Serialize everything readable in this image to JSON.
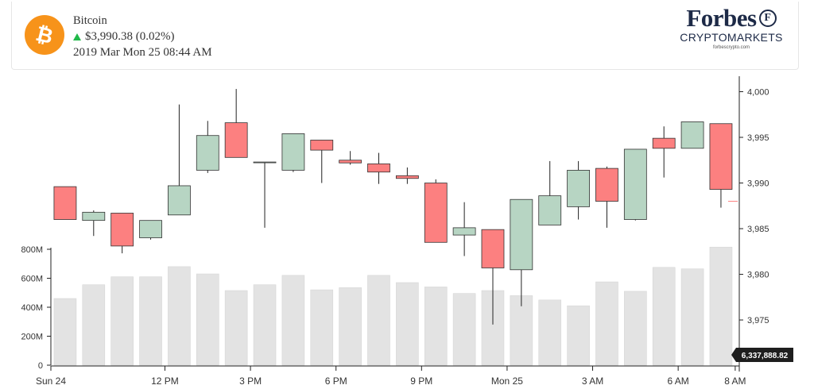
{
  "header": {
    "coin_name": "Bitcoin",
    "coin_symbol": "₿",
    "price_change": "$3,990.38 (0.02%)",
    "timestamp": "2019 Mar Mon 25 08:44 AM",
    "change_direction": "up"
  },
  "brand": {
    "name": "Forbes",
    "badge": "F",
    "subtitle": "CRYPTOMARKETS",
    "url": "forbescrypto.com"
  },
  "colors": {
    "up": "#b7d5c3",
    "down": "#fc8080",
    "volume": "#e3e3e3",
    "orange": "#f7931a",
    "arrow": "#21b94a"
  },
  "chart_data": {
    "type": "candlestick",
    "x_tick_labels": [
      "Sun 24",
      "12 PM",
      "3 PM",
      "6 PM",
      "9 PM",
      "Mon 25",
      "3 AM",
      "6 AM",
      "8 AM"
    ],
    "price_ticks": [
      "4,000",
      "3,995",
      "3,990",
      "3,985",
      "3,980",
      "3,975"
    ],
    "volume_ticks": [
      "800M",
      "600M",
      "400M",
      "200M",
      "0"
    ],
    "price_range": [
      3971.7,
      4001.0
    ],
    "volume_range": [
      0,
      900
    ],
    "last_price": 3988.0,
    "volume_label": "6,337,888.82",
    "candles": [
      {
        "open": 3989.6,
        "close": 3986.0,
        "high": 3989.6,
        "low": 3986.0,
        "volume": 460
      },
      {
        "open": 3985.9,
        "close": 3986.8,
        "high": 3987.0,
        "low": 3984.2,
        "volume": 555
      },
      {
        "open": 3986.7,
        "close": 3983.1,
        "high": 3986.7,
        "low": 3982.3,
        "volume": 610
      },
      {
        "open": 3984.0,
        "close": 3985.9,
        "high": 3985.9,
        "low": 3983.8,
        "volume": 610
      },
      {
        "open": 3986.5,
        "close": 3989.7,
        "high": 3998.6,
        "low": 3986.5,
        "volume": 680
      },
      {
        "open": 3991.4,
        "close": 3995.2,
        "high": 3996.8,
        "low": 3991.1,
        "volume": 630
      },
      {
        "open": 3996.6,
        "close": 3992.8,
        "high": 4000.3,
        "low": 3992.8,
        "volume": 515
      },
      {
        "open": 3992.3,
        "close": 3992.3,
        "high": 3992.3,
        "low": 3985.1,
        "volume": 555
      },
      {
        "open": 3991.4,
        "close": 3995.4,
        "high": 3995.4,
        "low": 3991.2,
        "volume": 620
      },
      {
        "open": 3994.7,
        "close": 3993.6,
        "high": 3994.7,
        "low": 3990.0,
        "volume": 520
      },
      {
        "open": 3992.5,
        "close": 3992.2,
        "high": 3993.5,
        "low": 3992.0,
        "volume": 535
      },
      {
        "open": 3992.1,
        "close": 3991.2,
        "high": 3993.3,
        "low": 3989.9,
        "volume": 620
      },
      {
        "open": 3990.8,
        "close": 3990.5,
        "high": 3991.7,
        "low": 3989.9,
        "volume": 570
      },
      {
        "open": 3990.0,
        "close": 3983.5,
        "high": 3990.4,
        "low": 3983.5,
        "volume": 540
      },
      {
        "open": 3984.3,
        "close": 3985.1,
        "high": 3987.9,
        "low": 3982.0,
        "volume": 495
      },
      {
        "open": 3984.9,
        "close": 3980.7,
        "high": 3984.9,
        "low": 3974.5,
        "volume": 515
      },
      {
        "open": 3980.5,
        "close": 3988.2,
        "high": 3988.2,
        "low": 3976.5,
        "volume": 480
      },
      {
        "open": 3985.4,
        "close": 3988.6,
        "high": 3992.4,
        "low": 3985.4,
        "volume": 450
      },
      {
        "open": 3987.4,
        "close": 3991.4,
        "high": 3992.4,
        "low": 3986.0,
        "volume": 410
      },
      {
        "open": 3991.6,
        "close": 3988.0,
        "high": 3991.8,
        "low": 3985.1,
        "volume": 575
      },
      {
        "open": 3986.0,
        "close": 3993.7,
        "high": 3993.7,
        "low": 3985.9,
        "volume": 510
      },
      {
        "open": 3994.9,
        "close": 3993.8,
        "high": 3996.2,
        "low": 3990.6,
        "volume": 675
      },
      {
        "open": 3993.8,
        "close": 3996.7,
        "high": 3996.7,
        "low": 3993.8,
        "volume": 665
      },
      {
        "open": 3996.5,
        "close": 3989.3,
        "high": 3996.5,
        "low": 3987.3,
        "volume": 815
      }
    ]
  }
}
